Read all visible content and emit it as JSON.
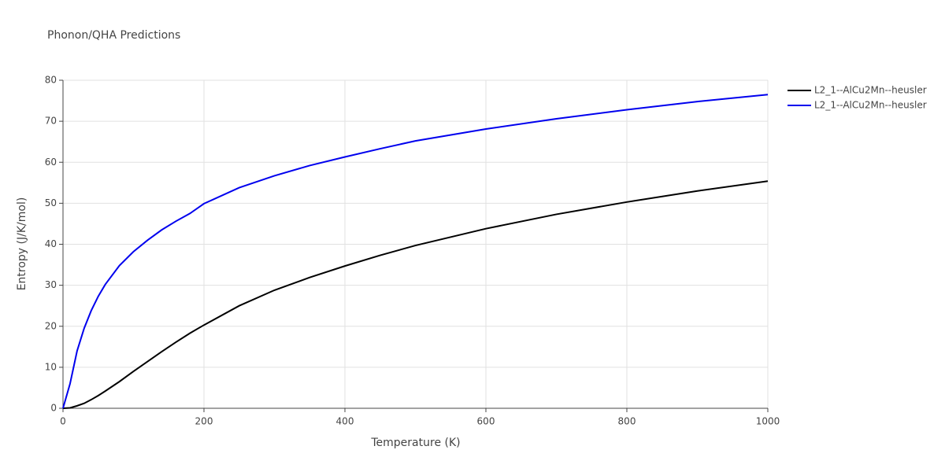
{
  "chart_data": {
    "type": "line",
    "title": "Phonon/QHA Predictions",
    "x_label": "Temperature (K)",
    "y_label": "Entropy (J/K/mol)",
    "x": [
      0,
      10,
      20,
      30,
      40,
      50,
      60,
      80,
      100,
      120,
      140,
      160,
      180,
      200,
      250,
      300,
      350,
      400,
      450,
      500,
      600,
      700,
      800,
      900,
      1000
    ],
    "series": [
      {
        "name": "L2_1--AlCu2Mn--heusler",
        "color": "#000000",
        "values": [
          0,
          0.1,
          0.6,
          1.2,
          2.1,
          3.1,
          4.2,
          6.5,
          9,
          11.4,
          13.8,
          16.1,
          18.3,
          20.3,
          25,
          28.8,
          31.9,
          34.7,
          37.3,
          39.7,
          43.8,
          47.3,
          50.3,
          53,
          55.4
        ]
      },
      {
        "name": "L2_1--AlCu2Mn--heusler",
        "color": "#0000ee",
        "values": [
          0,
          6,
          14,
          19.5,
          23.8,
          27.3,
          30.2,
          34.8,
          38.2,
          41,
          43.5,
          45.6,
          47.5,
          49.9,
          53.8,
          56.7,
          59.2,
          61.3,
          63.3,
          65.2,
          68.1,
          70.6,
          72.8,
          74.8,
          76.5
        ]
      }
    ],
    "xlim": [
      0,
      1000
    ],
    "xticks": [
      0,
      200,
      400,
      600,
      800,
      1000
    ],
    "ylim": [
      0,
      80
    ],
    "yticks": [
      0,
      10,
      20,
      30,
      40,
      50,
      60,
      70,
      80
    ],
    "grid": true,
    "legend": "right"
  }
}
